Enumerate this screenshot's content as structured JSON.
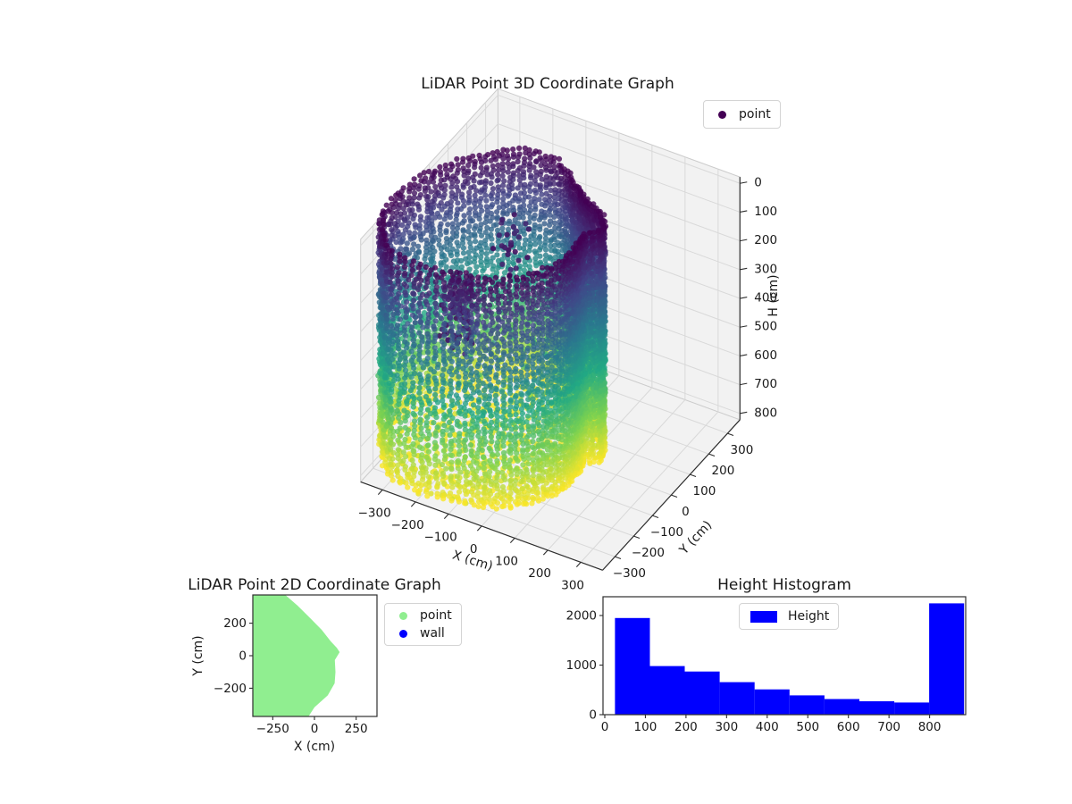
{
  "figure": {
    "background": "#ffffff"
  },
  "colors": {
    "colormap": "viridis",
    "viridis_stops": [
      [
        0,
        "#440154"
      ],
      [
        0.2,
        "#414487"
      ],
      [
        0.4,
        "#2a788e"
      ],
      [
        0.6,
        "#22a884"
      ],
      [
        0.8,
        "#7ad151"
      ],
      [
        1,
        "#fde725"
      ]
    ],
    "point_2d_green": "#90ee90",
    "wall_blue": "#0000ff",
    "hist_blue": "#0000ff",
    "legend_marker_3d": "#440154",
    "pane": "#f2f2f2",
    "pane_edge": "#cccccc",
    "grid": "#d9d9d9",
    "spine": "#2e2e2e",
    "text": "#191919"
  },
  "chart_data": [
    {
      "type": "scatter",
      "projection": "3d",
      "title": "LiDAR Point 3D Coordinate Graph",
      "xlabel": "X (cm)",
      "ylabel": "Y (cm)",
      "zlabel": "H (cm)",
      "legend": [
        {
          "label": "point",
          "color": "#440154"
        }
      ],
      "legend_position": "upper right",
      "xlim": [
        -366,
        366
      ],
      "ylim": [
        -366,
        366
      ],
      "hlim": [
        0,
        800
      ],
      "h_axis_inverted": true,
      "xtick_values": [
        -300,
        -200,
        -100,
        0,
        100,
        200,
        300
      ],
      "xtick_labels": [
        "−300",
        "−200",
        "−100",
        "0",
        "100",
        "200",
        "300"
      ],
      "ytick_values": [
        300,
        200,
        100,
        0,
        -100,
        -200,
        -300
      ],
      "ytick_labels": [
        "300",
        "200",
        "100",
        "0",
        "−100",
        "−200",
        "−300"
      ],
      "htick_values": [
        0,
        100,
        200,
        300,
        400,
        500,
        600,
        700,
        800
      ],
      "htick_labels": [
        "0",
        "100",
        "200",
        "300",
        "400",
        "500",
        "600",
        "700",
        "800"
      ],
      "color_by": "height H 0..800 cm, viridis (dark purple = 0 top, yellow = 800 floor)",
      "wall_radius_polar_deg_cm": [
        [
          -180,
          450
        ],
        [
          -130,
          450
        ],
        [
          -103,
          345
        ],
        [
          -90,
          317
        ],
        [
          -72,
          257
        ],
        [
          -55,
          209
        ],
        [
          -38,
          161
        ],
        [
          -22,
          130
        ],
        [
          -12,
          125
        ],
        [
          -4,
          140
        ],
        [
          0,
          151
        ],
        [
          8,
          153
        ],
        [
          20,
          143
        ],
        [
          32,
          136
        ],
        [
          42,
          132
        ],
        [
          52,
          136
        ],
        [
          60,
          142
        ],
        [
          75,
          165
        ],
        [
          88,
          205
        ],
        [
          96,
          232
        ],
        [
          104,
          290
        ],
        [
          110,
          330
        ],
        [
          115,
          380
        ],
        [
          125,
          420
        ],
        [
          130,
          450
        ],
        [
          180,
          450
        ]
      ],
      "wall_column_angle_step_deg": 2.8,
      "wall_point_vertical_step_cm": 15,
      "floor_height_cm": 800
    },
    {
      "type": "scatter",
      "projection": "2d",
      "title": "LiDAR Point 2D Coordinate Graph",
      "xlabel": "X (cm)",
      "ylabel": "Y (cm)",
      "legend": [
        {
          "label": "point",
          "color": "#90ee90"
        },
        {
          "label": "wall",
          "color": "#0000ff"
        }
      ],
      "xlim": [
        -370,
        376
      ],
      "ylim": [
        -374,
        374
      ],
      "xtick_values": [
        -250,
        0,
        250
      ],
      "xtick_labels": [
        "−250",
        "0",
        "250"
      ],
      "ytick_values": [
        200,
        0,
        -200
      ],
      "ytick_labels": [
        "200",
        "0",
        "−200"
      ],
      "region_fill": "#90ee90",
      "region_boundary_points": [
        [
          -370,
          378
        ],
        [
          -175,
          374
        ],
        [
          -100,
          307
        ],
        [
          -25,
          231
        ],
        [
          44,
          159
        ],
        [
          71,
          123
        ],
        [
          98,
          88
        ],
        [
          134,
          49
        ],
        [
          151,
          22
        ],
        [
          122,
          -27
        ],
        [
          126,
          -100
        ],
        [
          121,
          -170
        ],
        [
          80,
          -244
        ],
        [
          0,
          -317
        ],
        [
          -36,
          -374
        ],
        [
          -370,
          -378
        ]
      ]
    },
    {
      "type": "histogram",
      "title": "Height Histogram",
      "legend": [
        {
          "label": "Height",
          "color": "#0000ff"
        }
      ],
      "bar_color": "#0000ff",
      "bin_edges": [
        25,
        111,
        197,
        283,
        369,
        455,
        541,
        627,
        713,
        799,
        885
      ],
      "counts": [
        1950,
        980,
        870,
        655,
        510,
        390,
        315,
        270,
        245,
        2245
      ],
      "xlim": [
        -20,
        905
      ],
      "ylim": [
        0,
        2380
      ],
      "xtick_values": [
        0,
        100,
        200,
        300,
        400,
        500,
        600,
        700,
        800
      ],
      "xtick_labels": [
        "0",
        "100",
        "200",
        "300",
        "400",
        "500",
        "600",
        "700",
        "800"
      ],
      "ytick_values": [
        0,
        1000,
        2000
      ],
      "ytick_labels": [
        "0",
        "1000",
        "2000"
      ]
    }
  ]
}
